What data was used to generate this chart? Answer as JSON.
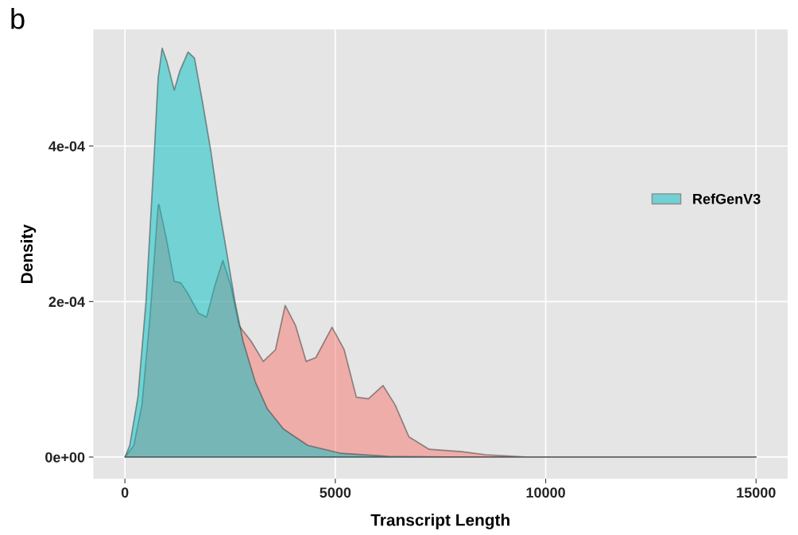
{
  "chart_data": {
    "type": "area",
    "xlabel": "Transcript Length",
    "ylabel": "Density",
    "annotations": [
      "b"
    ],
    "xlim": [
      -750,
      15750
    ],
    "xticks": [
      0,
      5000,
      10000,
      15000
    ],
    "ylim": [
      -2.8e-05,
      0.00055
    ],
    "yticks": [
      {
        "value": 0,
        "label": "0e+00"
      },
      {
        "value": 0.0002,
        "label": "2e-04"
      },
      {
        "value": 0.0004,
        "label": "4e-04"
      }
    ],
    "grid": true,
    "legend": "right",
    "series": [
      {
        "color": "#f8766d",
        "x": [
          0,
          212,
          404,
          596,
          788,
          810,
          981,
          1173,
          1327,
          1500,
          1750,
          1942,
          2135,
          2327,
          2519,
          2712,
          3000,
          3288,
          3577,
          3808,
          4058,
          4308,
          4538,
          4923,
          5212,
          5500,
          5788,
          6135,
          6423,
          6750,
          7231,
          8000,
          8577,
          9538,
          15000
        ],
        "values": [
          0,
          1.5e-05,
          6.7e-05,
          0.00018,
          0.000323,
          0.000325,
          0.000282,
          0.000226,
          0.000224,
          0.00021,
          0.000185,
          0.00018,
          0.00022,
          0.000253,
          0.00022,
          0.000169,
          0.000149,
          0.000123,
          0.000138,
          0.000195,
          0.000169,
          0.000123,
          0.000128,
          0.000167,
          0.000138,
          7.7e-05,
          7.5e-05,
          9.2e-05,
          6.7e-05,
          2.6e-05,
          1e-05,
          7e-06,
          3e-06,
          0,
          0
        ]
      },
      {
        "name": "RefGenV3",
        "color": "#00bfc4",
        "x": [
          0,
          115,
          308,
          500,
          692,
          788,
          885,
          1000,
          1173,
          1308,
          1500,
          1654,
          1846,
          2038,
          2231,
          2423,
          2615,
          2808,
          3096,
          3385,
          3769,
          4346,
          5115,
          6269,
          7615,
          15000
        ],
        "values": [
          0,
          1.5e-05,
          7.7e-05,
          0.0002,
          0.000385,
          0.000487,
          0.000526,
          0.000508,
          0.000472,
          0.000497,
          0.000521,
          0.000513,
          0.000456,
          0.000395,
          0.000323,
          0.000262,
          0.0002,
          0.000149,
          9.7e-05,
          6.2e-05,
          3.6e-05,
          1.5e-05,
          5e-06,
          1e-06,
          0,
          0
        ]
      }
    ]
  }
}
